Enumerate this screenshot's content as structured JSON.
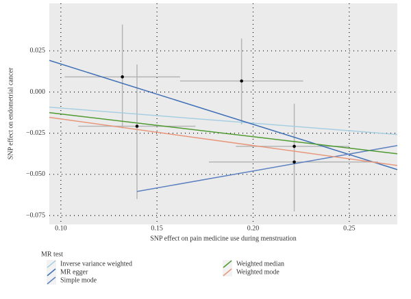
{
  "chart_data": {
    "type": "scatter",
    "x_label": "SNP effect on pain medicine use during menstruation",
    "y_label": "SNP effect on endometrial cancer",
    "xlim": [
      0.094,
      0.275
    ],
    "ylim": [
      -0.0804,
      0.0538
    ],
    "xticks": [
      {
        "value": 0.1,
        "label": "0.10"
      },
      0.15,
      {
        "value": 0.2,
        "label": "0.20"
      },
      0.25
    ],
    "yticks": [
      {
        "value": 0.025,
        "label": "0.025"
      },
      {
        "value": 0,
        "label": "0.000"
      },
      {
        "value": -0.025,
        "label": "−0.025"
      },
      {
        "value": -0.05,
        "label": "−0.050"
      },
      {
        "value": -0.075,
        "label": "−0.075"
      }
    ],
    "grid": true,
    "points": {
      "x": [
        0.132,
        0.1396,
        0.194,
        0.2214,
        0.2214
      ],
      "values": [
        0.0092,
        -0.0208,
        0.0067,
        -0.033,
        -0.0425
      ],
      "x_lo": [
        0.102,
        0.109,
        0.162,
        0.191,
        0.177
      ],
      "x_hi": [
        0.162,
        0.17,
        0.226,
        0.25,
        0.265
      ],
      "y_lo": [
        -0.022,
        -0.065,
        -0.0196,
        -0.05,
        -0.0725
      ],
      "y_hi": [
        0.041,
        0.0167,
        0.0325,
        -0.0071,
        -0.024
      ]
    },
    "legend_title": "MR test",
    "series": [
      {
        "name": "Inverse variance weighted",
        "color": "#a6cee3",
        "x": [
          0.094,
          0.275
        ],
        "values": [
          -0.0092,
          -0.0258
        ]
      },
      {
        "name": "MR egger",
        "color": "#3f6fb5",
        "x": [
          0.094,
          0.275
        ],
        "values": [
          0.0192,
          -0.0471
        ]
      },
      {
        "name": "Simple mode",
        "color": "#5b80c0",
        "x": [
          0.1396,
          0.275
        ],
        "values": [
          -0.0604,
          -0.0325
        ]
      },
      {
        "name": "Weighted median",
        "color": "#4d9a2e",
        "x": [
          0.094,
          0.275
        ],
        "values": [
          -0.0125,
          -0.0375
        ]
      },
      {
        "name": "Weighted mode",
        "color": "#e8967a",
        "x": [
          0.094,
          0.275
        ],
        "values": [
          -0.0154,
          -0.0446
        ]
      }
    ]
  }
}
